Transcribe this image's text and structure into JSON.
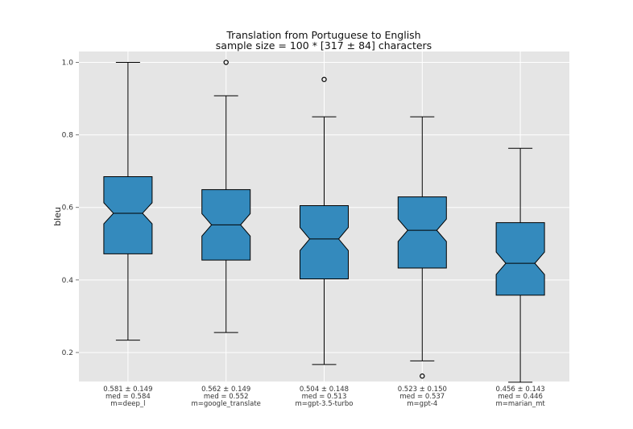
{
  "colors": {
    "plot_bg": "#e5e5e5",
    "grid": "#ffffff",
    "box_fill": "#348abd",
    "stroke": "#000000"
  },
  "chart_data": {
    "type": "box",
    "title": "Translation from Portuguese to English",
    "subtitle": "sample size = 100 * [317 ± 84] characters",
    "ylabel": "bleu",
    "ylim": [
      0.12,
      1.03
    ],
    "yticks": [
      "0.2",
      "0.4",
      "0.6",
      "0.8",
      "1.0"
    ],
    "notched": true,
    "grid": true,
    "boxes": [
      {
        "label_lines": [
          "0.581 ± 0.149",
          "med = 0.584",
          "m=deep_l"
        ],
        "median": 0.584,
        "q1": 0.472,
        "q3": 0.685,
        "whisker_low": 0.234,
        "whisker_high": 1.0,
        "notch_low": 0.555,
        "notch_high": 0.613,
        "outliers": []
      },
      {
        "label_lines": [
          "0.562 ± 0.149",
          "med = 0.552",
          "m=google_translate"
        ],
        "median": 0.552,
        "q1": 0.455,
        "q3": 0.649,
        "whisker_low": 0.255,
        "whisker_high": 0.908,
        "notch_low": 0.521,
        "notch_high": 0.583,
        "outliers": [
          1.0
        ]
      },
      {
        "label_lines": [
          "0.504 ± 0.148",
          "med = 0.513",
          "m=gpt-3.5-turbo"
        ],
        "median": 0.513,
        "q1": 0.403,
        "q3": 0.605,
        "whisker_low": 0.167,
        "whisker_high": 0.85,
        "notch_low": 0.481,
        "notch_high": 0.545,
        "outliers": [
          0.953
        ]
      },
      {
        "label_lines": [
          "0.523 ± 0.150",
          "med = 0.537",
          "m=gpt-4"
        ],
        "median": 0.537,
        "q1": 0.433,
        "q3": 0.629,
        "whisker_low": 0.177,
        "whisker_high": 0.85,
        "notch_low": 0.506,
        "notch_high": 0.568,
        "outliers": [
          0.135
        ]
      },
      {
        "label_lines": [
          "0.456 ± 0.143",
          "med = 0.446",
          "m=marian_mt"
        ],
        "median": 0.446,
        "q1": 0.358,
        "q3": 0.558,
        "whisker_low": 0.118,
        "whisker_high": 0.763,
        "notch_low": 0.415,
        "notch_high": 0.477,
        "outliers": []
      }
    ]
  }
}
